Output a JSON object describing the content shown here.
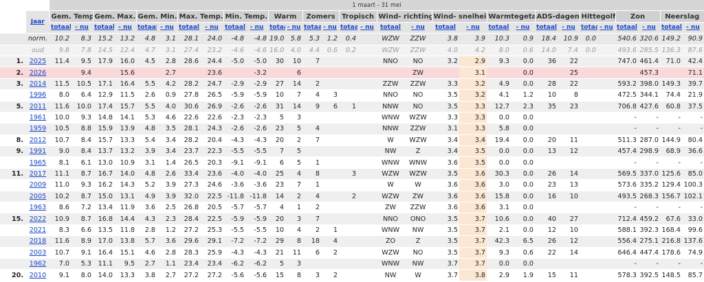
{
  "header": {
    "period": "1 maart - 31 mei",
    "year_label": "Jaar",
    "groups": [
      "Gem. Temp.",
      "Gem. Max.",
      "Gem. Min.",
      "Max. Temp.",
      "Min. Temp.",
      "Warm",
      "Zomers",
      "Tropisch",
      "Wind- richting",
      "Wind- snelheid",
      "Warmtegetal",
      "ADS-dagen",
      "Hittegolf",
      "Zon",
      "Neerslag"
    ],
    "sub": [
      "totaal",
      "- nu"
    ]
  },
  "table": {
    "rows": [
      [
        null,
        "norm.",
        "10.2",
        "8.3",
        "15.2",
        "13.2",
        "4.8",
        "3.1",
        "28.1",
        "24.0",
        "-4.8",
        "-4.8",
        "19.0",
        "5.8",
        "5.3",
        "1.2",
        "0.4",
        null,
        "WZW",
        "ZZW",
        "3.8",
        "3.9",
        "10.3",
        "0.9",
        "18.4",
        "10.9",
        "0.0",
        null,
        "540.6",
        "320.6",
        "149.2",
        "90.9"
      ],
      [
        null,
        "oud",
        "9.8",
        "7.8",
        "14.5",
        "12.4",
        "4.7",
        "3.1",
        "27.4",
        "23.2",
        "-4.6",
        "-4.6",
        "16.0",
        "4.0",
        "4.4",
        "0.6",
        "0.2",
        null,
        "WZW",
        "ZZW",
        "4.0",
        "4.2",
        "8.0",
        "0.6",
        "14.0",
        "7.4",
        "0.0",
        null,
        "493.6",
        "285.5",
        "136.3",
        "87.6"
      ],
      [
        "1.",
        "2025",
        "11.4",
        "9.5",
        "17.9",
        "16.0",
        "4.5",
        "2.8",
        "28.6",
        "24.4",
        "-5.0",
        "-5.0",
        "30",
        "10",
        "7",
        null,
        null,
        null,
        "NNO",
        "NO",
        "3.2",
        "2.9",
        "9.3",
        "0.0",
        "36",
        "22",
        null,
        null,
        "747.0",
        "461.4",
        "71.0",
        "42.4"
      ],
      [
        "2.",
        "2026",
        null,
        "9.4",
        null,
        "15.6",
        null,
        "2.7",
        null,
        "23.6",
        null,
        "-3.2",
        null,
        "6",
        null,
        null,
        null,
        null,
        null,
        "ZW",
        null,
        "3.1",
        null,
        "0.0",
        null,
        "25",
        null,
        null,
        null,
        "457.3",
        null,
        "71.1"
      ],
      [
        "3.",
        "2014",
        "11.5",
        "10.5",
        "17.1",
        "16.4",
        "5.5",
        "4.2",
        "28.2",
        "24.7",
        "-2.9",
        "-2.9",
        "27",
        "14",
        "2",
        null,
        null,
        null,
        "ZZW",
        "ZZW",
        "3.3",
        "3.2",
        "4.9",
        "0.0",
        "28",
        "22",
        null,
        null,
        "593.2",
        "398.0",
        "149.3",
        "39.7"
      ],
      [
        null,
        "1996",
        "8.0",
        "6.4",
        "12.9",
        "11.5",
        "2.6",
        "0.9",
        "27.8",
        "26.5",
        "-5.9",
        "-5.9",
        "10",
        "7",
        "4",
        "3",
        null,
        null,
        "NNO",
        "NO",
        "3.5",
        "3.2",
        "4.1",
        "1.2",
        "10",
        "8",
        null,
        null,
        "472.5",
        "344.1",
        "74.4",
        "21.9"
      ],
      [
        "5.",
        "2011",
        "11.6",
        "10.0",
        "17.4",
        "15.7",
        "5.5",
        "4.0",
        "30.6",
        "26.9",
        "-2.6",
        "-2.6",
        "31",
        "14",
        "9",
        "6",
        "1",
        null,
        "NNW",
        "NO",
        "3.5",
        "3.3",
        "12.7",
        "2.3",
        "35",
        "23",
        null,
        null,
        "706.8",
        "427.6",
        "60.8",
        "37.5"
      ],
      [
        null,
        "1961",
        "10.0",
        "9.3",
        "14.8",
        "14.1",
        "5.3",
        "4.6",
        "22.6",
        "22.6",
        "-2.3",
        "-2.3",
        "5",
        "3",
        null,
        null,
        null,
        null,
        "WNW",
        "WZW",
        "3.3",
        "3.3",
        "0.0",
        "0.0",
        null,
        null,
        null,
        null,
        "-",
        "-",
        "-",
        "-"
      ],
      [
        null,
        "1959",
        "10.5",
        "8.8",
        "15.9",
        "13.9",
        "4.8",
        "3.5",
        "28.1",
        "24.3",
        "-2.6",
        "-2.6",
        "23",
        "5",
        "4",
        null,
        null,
        null,
        "NNW",
        "ZZW",
        "3.1",
        "3.3",
        "5.8",
        "0.0",
        null,
        null,
        null,
        null,
        "-",
        "-",
        "-",
        "-"
      ],
      [
        "8.",
        "2012",
        "10.7",
        "8.4",
        "15.7",
        "13.3",
        "5.4",
        "3.4",
        "28.2",
        "20.4",
        "-4.3",
        "-4.3",
        "20",
        "2",
        "7",
        null,
        null,
        null,
        "W",
        "WZW",
        "3.4",
        "3.4",
        "19.4",
        "0.0",
        "20",
        "11",
        null,
        null,
        "511.3",
        "287.0",
        "144.9",
        "80.4"
      ],
      [
        "9.",
        "1991",
        "9.0",
        "8.4",
        "13.7",
        "13.2",
        "3.9",
        "3.4",
        "23.7",
        "22.3",
        "-5.5",
        "-5.5",
        "7",
        "5",
        null,
        null,
        null,
        null,
        "NW",
        "Z",
        "3.4",
        "3.5",
        "0.0",
        "0.0",
        "13",
        "12",
        null,
        null,
        "457.4",
        "298.9",
        "68.9",
        "36.6"
      ],
      [
        null,
        "1965",
        "8.1",
        "6.1",
        "13.0",
        "10.9",
        "3.1",
        "1.4",
        "26.5",
        "20.3",
        "-9.1",
        "-9.1",
        "6",
        "5",
        "1",
        null,
        null,
        null,
        "WNW",
        "WNW",
        "3.6",
        "3.5",
        "0.0",
        "0.0",
        null,
        null,
        null,
        null,
        "-",
        "-",
        "-",
        "-"
      ],
      [
        "11.",
        "2017",
        "11.1",
        "8.7",
        "16.7",
        "14.0",
        "4.8",
        "2.6",
        "33.4",
        "23.6",
        "-4.0",
        "-4.0",
        "25",
        "4",
        "8",
        null,
        "3",
        null,
        "WZW",
        "WZW",
        "3.5",
        "3.6",
        "30.3",
        "0.0",
        "26",
        "14",
        null,
        null,
        "569.5",
        "337.0",
        "125.6",
        "85.0"
      ],
      [
        null,
        "2009",
        "11.0",
        "9.3",
        "16.2",
        "14.3",
        "5.2",
        "3.9",
        "27.3",
        "24.6",
        "-3.6",
        "-3.6",
        "23",
        "7",
        "1",
        null,
        null,
        null,
        "W",
        "W",
        "3.6",
        "3.6",
        "3.0",
        "0.0",
        "23",
        "13",
        null,
        null,
        "573.6",
        "335.2",
        "129.4",
        "100.3"
      ],
      [
        null,
        "2005",
        "10.2",
        "8.7",
        "15.0",
        "13.1",
        "4.9",
        "3.9",
        "32.0",
        "22.5",
        "-11.8",
        "-11.8",
        "14",
        "2",
        "4",
        null,
        "2",
        null,
        "WZW",
        "ZW",
        "3.6",
        "3.6",
        "15.8",
        "0.0",
        "16",
        "10",
        null,
        null,
        "493.5",
        "268.3",
        "156.7",
        "102.1"
      ],
      [
        null,
        "1963",
        "8.6",
        "7.2",
        "13.4",
        "11.9",
        "3.6",
        "2.5",
        "26.8",
        "20.5",
        "-5.7",
        "-5.7",
        "4",
        "1",
        "2",
        null,
        null,
        null,
        "ZW",
        "ZZW",
        "3.6",
        "3.6",
        "3.1",
        "0.0",
        null,
        null,
        null,
        null,
        "-",
        "-",
        "-",
        "-"
      ],
      [
        "15.",
        "2022",
        "10.9",
        "8.7",
        "16.8",
        "14.4",
        "4.3",
        "2.3",
        "28.4",
        "22.5",
        "-5.9",
        "-5.9",
        "20",
        "3",
        "7",
        null,
        null,
        null,
        "NNO",
        "ONO",
        "3.5",
        "3.7",
        "10.6",
        "0.0",
        "40",
        "27",
        null,
        null,
        "712.4",
        "459.2",
        "67.6",
        "33.0"
      ],
      [
        null,
        "2021",
        "8.3",
        "6.6",
        "13.5",
        "11.8",
        "2.8",
        "1.2",
        "27.2",
        "25.3",
        "-5.5",
        "-5.5",
        "10",
        "4",
        "2",
        "1",
        null,
        null,
        "WNW",
        "NW",
        "3.5",
        "3.7",
        "2.1",
        "0.0",
        "12",
        "10",
        null,
        null,
        "588.1",
        "392.3",
        "168.4",
        "99.6"
      ],
      [
        null,
        "2018",
        "11.6",
        "8.9",
        "17.0",
        "13.8",
        "5.7",
        "3.6",
        "29.6",
        "29.1",
        "-7.2",
        "-7.2",
        "29",
        "8",
        "18",
        "4",
        null,
        null,
        "ZO",
        "Z",
        "3.5",
        "3.7",
        "42.3",
        "6.5",
        "26",
        "12",
        null,
        null,
        "556.4",
        "275.1",
        "216.8",
        "137.6"
      ],
      [
        null,
        "2003",
        "10.7",
        "9.1",
        "16.4",
        "15.1",
        "4.6",
        "2.8",
        "28.3",
        "25.9",
        "-4.3",
        "-4.3",
        "21",
        "11",
        "6",
        "2",
        null,
        null,
        "WZW",
        "NO",
        "3.5",
        "3.7",
        "9.3",
        "0.6",
        "22",
        "14",
        null,
        null,
        "646.4",
        "447.4",
        "178.6",
        "74.9"
      ],
      [
        null,
        "1962",
        "7.0",
        "5.3",
        "11.1",
        "9.5",
        "2.7",
        "1.1",
        "23.4",
        "23.4",
        "-6.2",
        "-6.2",
        "5",
        "3",
        null,
        null,
        null,
        null,
        "WNW",
        "NW",
        "3.7",
        "3.7",
        "0.0",
        "0.0",
        null,
        null,
        null,
        null,
        "-",
        "-",
        "-",
        "-"
      ],
      [
        "20.",
        "2010",
        "9.1",
        "8.0",
        "14.0",
        "13.3",
        "3.8",
        "2.7",
        "27.2",
        "27.2",
        "-5.6",
        "-5.6",
        "15",
        "8",
        "3",
        "2",
        null,
        null,
        "NW",
        "W",
        "3.7",
        "3.8",
        "2.9",
        "1.9",
        "15",
        "11",
        null,
        null,
        "578.3",
        "392.5",
        "148.5",
        "85.7"
      ]
    ]
  }
}
